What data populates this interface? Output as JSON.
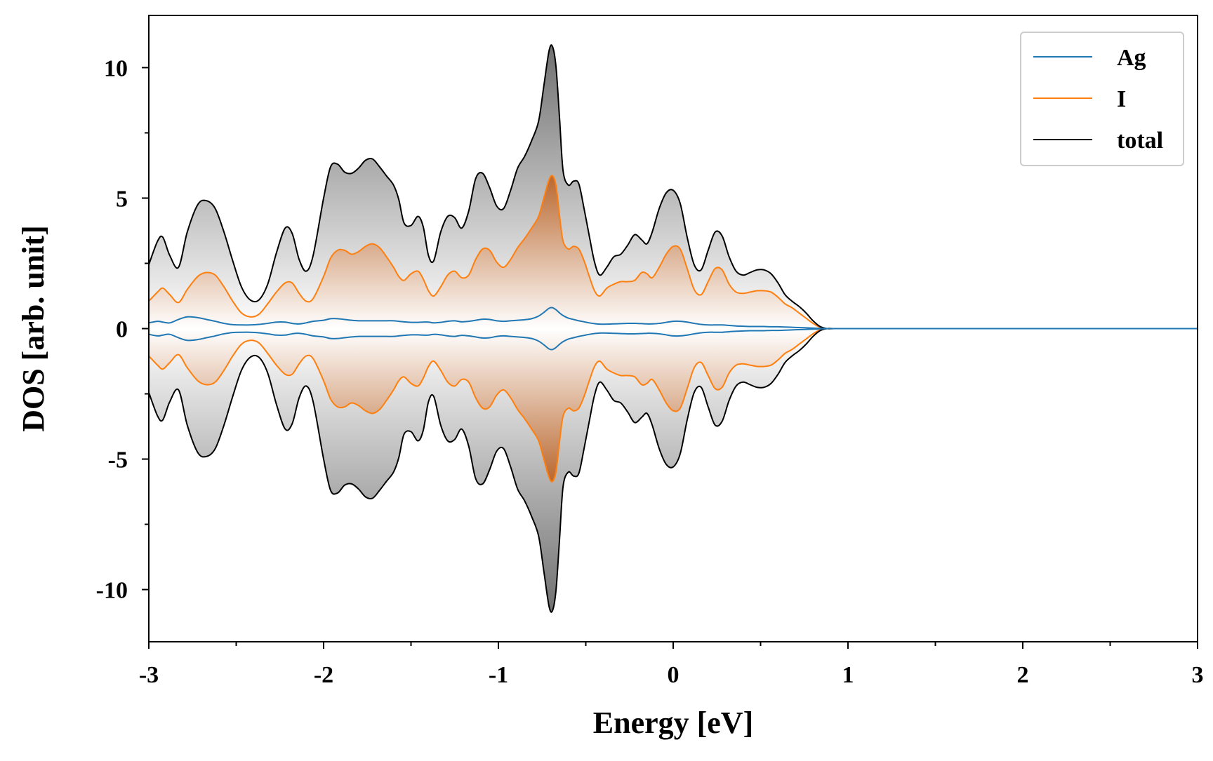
{
  "chart_data": {
    "type": "area",
    "title": "",
    "xlabel": "Energy [eV]",
    "ylabel": "DOS [arb. unit]",
    "xlim": [
      -3,
      3
    ],
    "ylim": [
      -12,
      12
    ],
    "x_ticks": [
      -3,
      -2,
      -1,
      0,
      1,
      2,
      3
    ],
    "x_tick_labels": [
      "-3",
      "-2",
      "-1",
      "0",
      "1",
      "2",
      "3"
    ],
    "y_ticks": [
      -10,
      -5,
      0,
      5,
      10
    ],
    "y_tick_labels": [
      "-10",
      "-5",
      "0",
      "5",
      "10"
    ],
    "grid": false,
    "legend_position": "top-right",
    "mirrored_spin_channels": true,
    "x": [
      -3.0,
      -2.95,
      -2.92,
      -2.88,
      -2.83,
      -2.78,
      -2.72,
      -2.67,
      -2.62,
      -2.57,
      -2.52,
      -2.47,
      -2.42,
      -2.37,
      -2.32,
      -2.27,
      -2.22,
      -2.18,
      -2.14,
      -2.1,
      -2.06,
      -2.0,
      -1.96,
      -1.92,
      -1.88,
      -1.84,
      -1.8,
      -1.76,
      -1.72,
      -1.68,
      -1.64,
      -1.6,
      -1.57,
      -1.54,
      -1.5,
      -1.46,
      -1.43,
      -1.4,
      -1.37,
      -1.33,
      -1.29,
      -1.25,
      -1.21,
      -1.17,
      -1.13,
      -1.09,
      -1.05,
      -1.01,
      -0.97,
      -0.93,
      -0.89,
      -0.85,
      -0.81,
      -0.77,
      -0.74,
      -0.71,
      -0.69,
      -0.67,
      -0.65,
      -0.63,
      -0.6,
      -0.57,
      -0.54,
      -0.51,
      -0.48,
      -0.45,
      -0.42,
      -0.38,
      -0.34,
      -0.3,
      -0.26,
      -0.22,
      -0.18,
      -0.15,
      -0.12,
      -0.08,
      -0.04,
      0.0,
      0.04,
      0.08,
      0.12,
      0.16,
      0.2,
      0.24,
      0.28,
      0.32,
      0.36,
      0.4,
      0.44,
      0.48,
      0.52,
      0.56,
      0.6,
      0.64,
      0.68,
      0.72,
      0.76,
      0.8,
      0.84,
      0.88,
      0.92,
      1.0,
      1.5,
      2.0,
      2.5,
      3.0
    ],
    "series": [
      {
        "name": "Ag",
        "color": "#1f77b4",
        "values": [
          0.22,
          0.28,
          0.25,
          0.22,
          0.35,
          0.45,
          0.42,
          0.35,
          0.28,
          0.2,
          0.15,
          0.14,
          0.14,
          0.16,
          0.2,
          0.25,
          0.25,
          0.2,
          0.18,
          0.22,
          0.28,
          0.32,
          0.38,
          0.38,
          0.35,
          0.32,
          0.3,
          0.3,
          0.3,
          0.3,
          0.3,
          0.3,
          0.28,
          0.26,
          0.24,
          0.24,
          0.25,
          0.25,
          0.22,
          0.24,
          0.28,
          0.3,
          0.26,
          0.28,
          0.32,
          0.36,
          0.35,
          0.3,
          0.28,
          0.3,
          0.32,
          0.34,
          0.38,
          0.48,
          0.62,
          0.78,
          0.8,
          0.72,
          0.6,
          0.5,
          0.4,
          0.35,
          0.3,
          0.26,
          0.22,
          0.19,
          0.17,
          0.17,
          0.18,
          0.19,
          0.2,
          0.2,
          0.19,
          0.18,
          0.18,
          0.2,
          0.24,
          0.28,
          0.28,
          0.25,
          0.2,
          0.16,
          0.14,
          0.14,
          0.14,
          0.12,
          0.1,
          0.09,
          0.08,
          0.08,
          0.08,
          0.07,
          0.07,
          0.06,
          0.05,
          0.04,
          0.03,
          0.02,
          0.01,
          0.0,
          0.0,
          0.0,
          0.0,
          0.0,
          0.0,
          0.0
        ]
      },
      {
        "name": "I",
        "color": "#ff7f0e",
        "values": [
          1.05,
          1.4,
          1.55,
          1.3,
          1.0,
          1.5,
          2.0,
          2.15,
          2.05,
          1.6,
          1.05,
          0.6,
          0.45,
          0.55,
          0.95,
          1.4,
          1.75,
          1.75,
          1.35,
          1.05,
          1.15,
          2.0,
          2.7,
          3.0,
          3.0,
          2.85,
          2.95,
          3.15,
          3.25,
          3.1,
          2.75,
          2.35,
          2.0,
          1.85,
          2.1,
          2.2,
          1.9,
          1.45,
          1.25,
          1.6,
          2.05,
          2.2,
          1.95,
          2.05,
          2.65,
          3.05,
          3.0,
          2.55,
          2.35,
          2.65,
          3.1,
          3.45,
          3.85,
          4.3,
          5.0,
          5.7,
          5.85,
          5.45,
          4.3,
          3.35,
          3.05,
          3.15,
          3.05,
          2.6,
          2.0,
          1.45,
          1.25,
          1.55,
          1.7,
          1.8,
          1.8,
          1.85,
          2.15,
          2.1,
          1.95,
          2.35,
          2.85,
          3.15,
          3.05,
          2.3,
          1.5,
          1.3,
          1.8,
          2.3,
          2.25,
          1.7,
          1.4,
          1.35,
          1.4,
          1.45,
          1.45,
          1.4,
          1.2,
          0.95,
          0.8,
          0.6,
          0.4,
          0.2,
          0.05,
          0.0,
          0.0,
          0.0,
          0.0,
          0.0,
          0.0,
          0.0
        ]
      },
      {
        "name": "total",
        "color": "#000000",
        "values": [
          2.45,
          3.35,
          3.5,
          2.8,
          2.35,
          3.7,
          4.75,
          4.9,
          4.6,
          3.7,
          2.6,
          1.6,
          1.1,
          1.1,
          1.7,
          2.9,
          3.85,
          3.65,
          2.65,
          2.2,
          2.8,
          5.0,
          6.2,
          6.3,
          6.0,
          5.95,
          6.15,
          6.45,
          6.5,
          6.2,
          5.85,
          5.5,
          4.95,
          4.05,
          3.95,
          4.3,
          3.9,
          2.8,
          2.6,
          3.7,
          4.3,
          4.25,
          3.85,
          4.5,
          5.75,
          5.95,
          5.4,
          4.7,
          4.6,
          5.3,
          6.15,
          6.6,
          7.2,
          7.95,
          9.3,
          10.65,
          10.8,
          10.0,
          8.05,
          6.05,
          5.5,
          5.65,
          5.55,
          4.6,
          3.55,
          2.55,
          2.05,
          2.35,
          2.75,
          2.85,
          3.2,
          3.6,
          3.4,
          3.25,
          3.7,
          4.6,
          5.2,
          5.3,
          4.8,
          3.5,
          2.45,
          2.25,
          3.0,
          3.7,
          3.55,
          2.75,
          2.2,
          2.05,
          2.15,
          2.25,
          2.25,
          2.1,
          1.75,
          1.3,
          1.05,
          0.85,
          0.6,
          0.3,
          0.08,
          0.0,
          0.0,
          0.0,
          0.0,
          0.0,
          0.0,
          0.0
        ]
      }
    ]
  }
}
